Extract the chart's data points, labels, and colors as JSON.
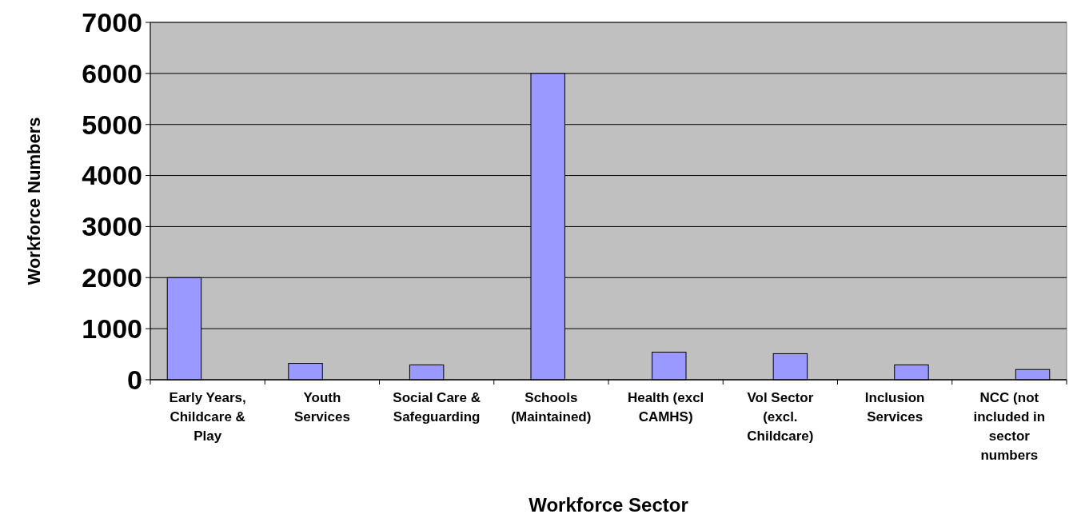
{
  "chart_data": {
    "type": "bar",
    "xlabel": "Workforce Sector",
    "ylabel": "Workforce Numbers",
    "categories": [
      "Early Years, Childcare & Play",
      "Youth Services",
      "Social Care & Safeguarding",
      "Schools (Maintained)",
      "Health (excl CAMHS)",
      "Vol Sector (excl. Childcare)",
      "Inclusion Services",
      "NCC (not included in sector numbers"
    ],
    "values": [
      2000,
      320,
      290,
      6000,
      540,
      510,
      290,
      200
    ],
    "color": "#9999ff",
    "ylim": [
      0,
      7000
    ],
    "yticks": [
      0,
      1000,
      2000,
      3000,
      4000,
      5000,
      6000,
      7000
    ],
    "grid": "y"
  }
}
